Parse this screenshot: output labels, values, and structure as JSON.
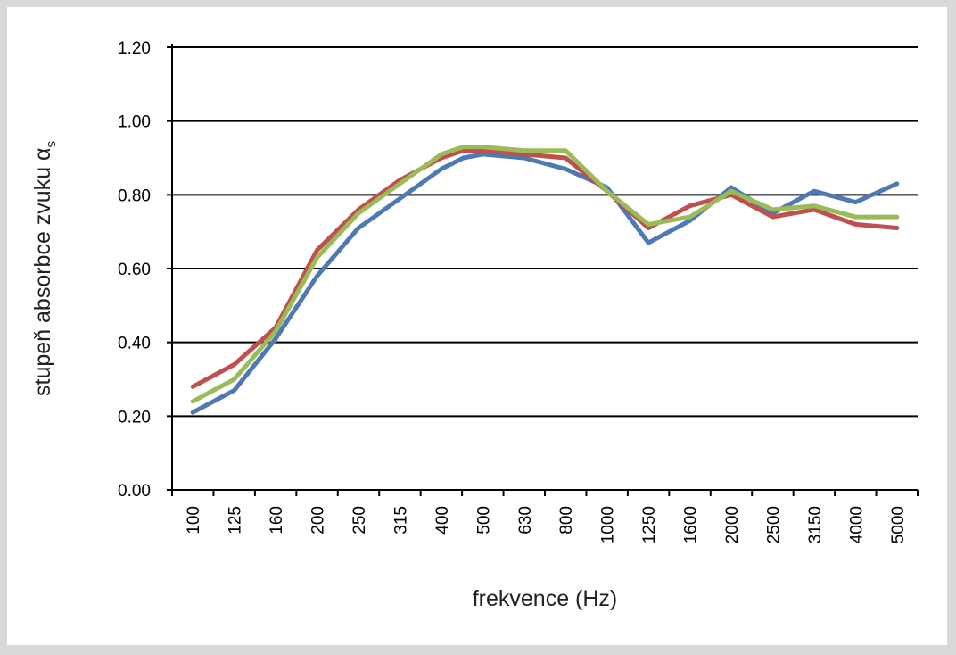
{
  "chart_data": {
    "type": "line",
    "title": "",
    "xlabel": "frekvence (Hz)",
    "ylabel": "stupeň absorbce zvuku α",
    "ylabel_subscript": "s",
    "categories": [
      "100",
      "125",
      "160",
      "200",
      "250",
      "315",
      "400",
      "500",
      "630",
      "800",
      "1000",
      "1250",
      "1600",
      "2000",
      "2500",
      "3150",
      "4000",
      "5000"
    ],
    "y_ticks": [
      "0.00",
      "0.20",
      "0.40",
      "0.60",
      "0.80",
      "1.00",
      "1.20"
    ],
    "ylim": [
      0,
      1.2
    ],
    "grid": true,
    "legend": "none",
    "series": [
      {
        "color": "#4f79b4",
        "x": [
          100,
          125,
          160,
          200,
          250,
          315,
          400,
          450,
          500,
          630,
          800,
          1000,
          1250,
          1600,
          2000,
          2500,
          3150,
          4000,
          5000
        ],
        "values": [
          0.21,
          0.27,
          0.41,
          0.58,
          0.71,
          0.79,
          0.87,
          0.9,
          0.91,
          0.9,
          0.87,
          0.82,
          0.67,
          0.73,
          0.82,
          0.75,
          0.81,
          0.78,
          0.83
        ]
      },
      {
        "color": "#c0504d",
        "x": [
          100,
          125,
          160,
          200,
          250,
          315,
          400,
          450,
          500,
          630,
          800,
          1000,
          1250,
          1600,
          2000,
          2500,
          3150,
          4000,
          5000
        ],
        "values": [
          0.28,
          0.34,
          0.44,
          0.65,
          0.76,
          0.84,
          0.9,
          0.92,
          0.92,
          0.91,
          0.9,
          0.81,
          0.71,
          0.77,
          0.8,
          0.74,
          0.76,
          0.72,
          0.71
        ]
      },
      {
        "color": "#9bbb59",
        "x": [
          100,
          125,
          160,
          200,
          250,
          315,
          400,
          450,
          500,
          630,
          800,
          1000,
          1250,
          1600,
          2000,
          2500,
          3150,
          4000,
          5000
        ],
        "values": [
          0.24,
          0.3,
          0.43,
          0.63,
          0.75,
          0.83,
          0.91,
          0.93,
          0.93,
          0.92,
          0.92,
          0.81,
          0.72,
          0.74,
          0.81,
          0.76,
          0.77,
          0.74,
          0.74
        ]
      }
    ]
  }
}
